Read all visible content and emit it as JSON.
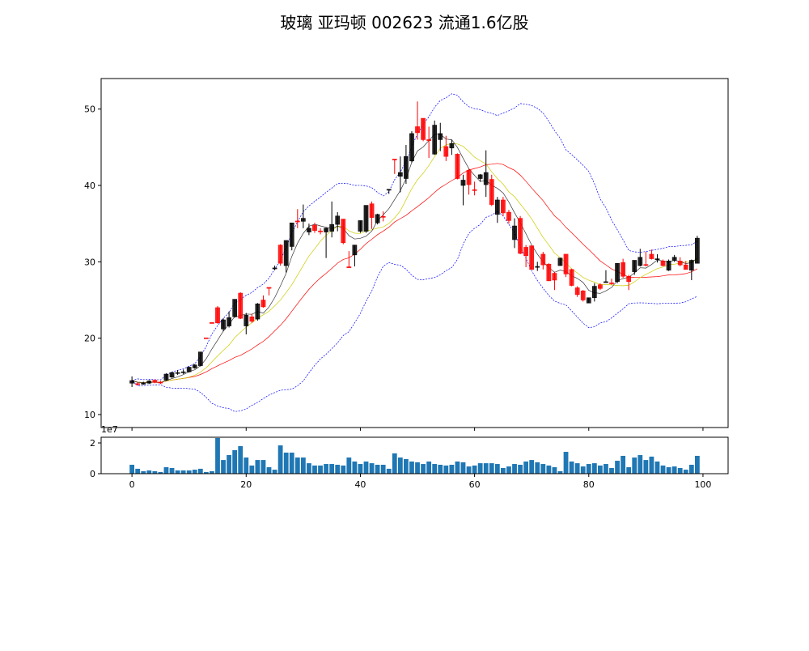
{
  "chart_data": {
    "type": "candlestick",
    "title": "玻璃 亚玛顿 002623 流通1.6亿股",
    "colors": {
      "up": "#000000",
      "down": "#ff0000",
      "ma5": "#000000",
      "ma10": "#cccc00",
      "ma20": "#ff0000",
      "bollinger": "#0000ff",
      "volume": "#1f77b4"
    },
    "indicators": [
      "MA5",
      "MA10",
      "MA20",
      "Bollinger(20,2)"
    ],
    "xlim": [
      -5.4,
      104.4
    ],
    "ylim": [
      8.3,
      54.0
    ],
    "x_ticks": [
      0,
      20,
      40,
      60,
      80,
      100
    ],
    "y_ticks": [
      10,
      20,
      30,
      40,
      50
    ],
    "grid": false,
    "ohlc": [
      [
        14.1,
        15.0,
        13.6,
        14.45
      ],
      [
        14.05,
        14.2,
        13.8,
        14.0
      ],
      [
        14.05,
        14.3,
        13.9,
        14.1
      ],
      [
        14.1,
        14.5,
        14.0,
        14.4
      ],
      [
        14.5,
        14.6,
        14.1,
        14.2
      ],
      [
        14.25,
        14.4,
        14.0,
        14.2
      ],
      [
        14.5,
        15.4,
        14.4,
        15.3
      ],
      [
        14.9,
        15.6,
        14.8,
        15.5
      ],
      [
        15.45,
        15.8,
        15.2,
        15.5
      ],
      [
        15.55,
        15.9,
        15.3,
        15.6
      ],
      [
        15.6,
        16.3,
        15.5,
        16.2
      ],
      [
        16.1,
        16.6,
        16.0,
        16.5
      ],
      [
        16.4,
        18.2,
        16.3,
        18.2
      ],
      [
        20.05,
        20.05,
        20.0,
        20.0
      ],
      [
        22.05,
        22.05,
        22.0,
        22.0
      ],
      [
        24.0,
        24.2,
        21.9,
        22.0
      ],
      [
        21.2,
        22.6,
        20.9,
        22.4
      ],
      [
        21.6,
        23.5,
        21.4,
        22.7
      ],
      [
        22.8,
        25.1,
        22.7,
        25.1
      ],
      [
        25.9,
        26.0,
        22.5,
        22.6
      ],
      [
        21.6,
        23.3,
        20.5,
        23.0
      ],
      [
        22.8,
        23.2,
        22.0,
        22.2
      ],
      [
        22.5,
        24.6,
        22.3,
        24.5
      ],
      [
        25.0,
        25.6,
        24.0,
        24.1
      ],
      [
        26.65,
        26.65,
        25.6,
        26.6
      ],
      [
        29.15,
        29.5,
        28.9,
        29.2
      ],
      [
        32.2,
        32.3,
        29.5,
        29.8
      ],
      [
        29.5,
        32.8,
        28.6,
        32.8
      ],
      [
        32.0,
        35.1,
        31.5,
        35.1
      ],
      [
        35.35,
        36.9,
        34.4,
        35.3
      ],
      [
        35.3,
        37.5,
        34.4,
        35.7
      ],
      [
        33.9,
        35.0,
        33.5,
        34.4
      ],
      [
        34.8,
        35.1,
        33.8,
        34.1
      ],
      [
        34.05,
        34.4,
        33.6,
        34.0
      ],
      [
        33.9,
        34.5,
        30.5,
        34.4
      ],
      [
        34.0,
        37.9,
        33.2,
        34.9
      ],
      [
        34.9,
        36.5,
        34.0,
        36.0
      ],
      [
        35.6,
        35.6,
        32.3,
        32.5
      ],
      [
        29.35,
        31.4,
        29.3,
        29.3
      ],
      [
        30.9,
        32.2,
        29.4,
        32.2
      ],
      [
        34.0,
        35.4,
        33.8,
        35.4
      ],
      [
        34.0,
        37.4,
        33.8,
        37.4
      ],
      [
        37.6,
        37.9,
        34.3,
        35.8
      ],
      [
        35.1,
        36.3,
        34.9,
        36.2
      ],
      [
        35.95,
        36.6,
        35.3,
        35.9
      ],
      [
        39.4,
        39.5,
        38.9,
        39.5
      ],
      [
        43.45,
        43.45,
        41.5,
        43.4
      ],
      [
        41.2,
        43.8,
        39.1,
        41.7
      ],
      [
        40.9,
        45.3,
        40.2,
        43.8
      ],
      [
        43.2,
        47.1,
        43.0,
        46.8
      ],
      [
        47.7,
        51.0,
        46.0,
        46.9
      ],
      [
        48.8,
        48.8,
        45.8,
        46.0
      ],
      [
        46.0,
        47.7,
        43.6,
        45.9
      ],
      [
        44.1,
        48.5,
        44.0,
        47.9
      ],
      [
        46.0,
        48.2,
        44.5,
        46.8
      ],
      [
        45.1,
        46.5,
        43.2,
        43.8
      ],
      [
        44.9,
        46.0,
        44.0,
        45.5
      ],
      [
        44.1,
        44.2,
        40.8,
        40.9
      ],
      [
        40.0,
        41.4,
        37.4,
        40.7
      ],
      [
        42.0,
        42.2,
        38.8,
        40.1
      ],
      [
        39.45,
        40.5,
        38.7,
        39.4
      ],
      [
        40.9,
        41.5,
        40.5,
        41.4
      ],
      [
        40.1,
        44.6,
        38.5,
        41.7
      ],
      [
        40.8,
        41.4,
        37.3,
        37.5
      ],
      [
        36.2,
        38.5,
        35.1,
        38.1
      ],
      [
        38.1,
        38.5,
        36.0,
        36.4
      ],
      [
        36.5,
        36.8,
        35.0,
        35.4
      ],
      [
        32.9,
        35.7,
        31.8,
        34.7
      ],
      [
        35.7,
        36.0,
        31.0,
        31.1
      ],
      [
        31.9,
        32.2,
        29.3,
        30.8
      ],
      [
        32.1,
        32.1,
        29.0,
        29.0
      ],
      [
        29.35,
        30.0,
        28.8,
        29.4
      ],
      [
        31.0,
        31.3,
        29.0,
        29.6
      ],
      [
        29.7,
        29.8,
        27.5,
        27.5
      ],
      [
        28.5,
        28.7,
        26.3,
        27.6
      ],
      [
        29.5,
        30.5,
        29.5,
        30.5
      ],
      [
        31.0,
        31.0,
        28.0,
        28.4
      ],
      [
        29.0,
        29.1,
        26.8,
        26.9
      ],
      [
        26.6,
        26.8,
        25.4,
        25.7
      ],
      [
        26.2,
        26.3,
        24.8,
        25.0
      ],
      [
        24.6,
        25.3,
        24.6,
        25.3
      ],
      [
        25.3,
        27.2,
        24.8,
        26.8
      ],
      [
        27.0,
        27.2,
        26.3,
        26.5
      ],
      [
        27.35,
        28.9,
        27.3,
        27.4
      ],
      [
        27.25,
        27.8,
        27.0,
        27.2
      ],
      [
        27.4,
        29.8,
        27.2,
        29.8
      ],
      [
        29.9,
        30.4,
        27.9,
        28.1
      ],
      [
        28.1,
        28.3,
        26.3,
        27.4
      ],
      [
        28.7,
        30.2,
        28.3,
        30.2
      ],
      [
        29.5,
        31.7,
        29.4,
        30.6
      ],
      [
        29.65,
        31.3,
        29.4,
        29.6
      ],
      [
        31.0,
        31.6,
        30.3,
        30.4
      ],
      [
        30.35,
        31.0,
        29.9,
        30.4
      ],
      [
        30.1,
        30.3,
        29.4,
        29.5
      ],
      [
        28.9,
        30.3,
        28.8,
        30.1
      ],
      [
        30.2,
        30.9,
        30.0,
        30.6
      ],
      [
        30.1,
        30.6,
        29.4,
        29.6
      ],
      [
        29.6,
        30.1,
        29.0,
        29.0
      ],
      [
        28.9,
        30.3,
        27.6,
        30.2
      ],
      [
        29.8,
        33.4,
        29.8,
        33.1
      ]
    ],
    "volume": {
      "offset_label": "1e7",
      "ylim": [
        0,
        2.37
      ],
      "y_ticks": [
        0,
        2
      ],
      "values": [
        0.58,
        0.32,
        0.16,
        0.21,
        0.16,
        0.11,
        0.42,
        0.37,
        0.21,
        0.21,
        0.21,
        0.26,
        0.32,
        0.11,
        0.16,
        2.32,
        0.89,
        1.21,
        1.53,
        1.79,
        1.05,
        0.53,
        0.89,
        0.89,
        0.42,
        0.26,
        1.84,
        1.37,
        1.37,
        1.05,
        1.05,
        0.68,
        0.53,
        0.53,
        0.63,
        0.63,
        0.58,
        0.53,
        1.05,
        0.79,
        0.63,
        0.79,
        0.68,
        0.58,
        0.58,
        0.32,
        1.32,
        1.05,
        0.95,
        0.79,
        0.74,
        0.63,
        0.79,
        0.63,
        0.58,
        0.53,
        0.58,
        0.79,
        0.74,
        0.47,
        0.53,
        0.68,
        0.68,
        0.68,
        0.63,
        0.37,
        0.47,
        0.63,
        0.58,
        0.79,
        0.89,
        0.74,
        0.63,
        0.53,
        0.42,
        0.16,
        1.42,
        0.79,
        0.68,
        0.47,
        0.63,
        0.68,
        0.53,
        0.63,
        0.37,
        0.84,
        1.16,
        0.42,
        1.05,
        1.21,
        0.89,
        1.11,
        0.79,
        0.53,
        0.42,
        0.47,
        0.37,
        0.26,
        0.58,
        1.16
      ]
    }
  }
}
